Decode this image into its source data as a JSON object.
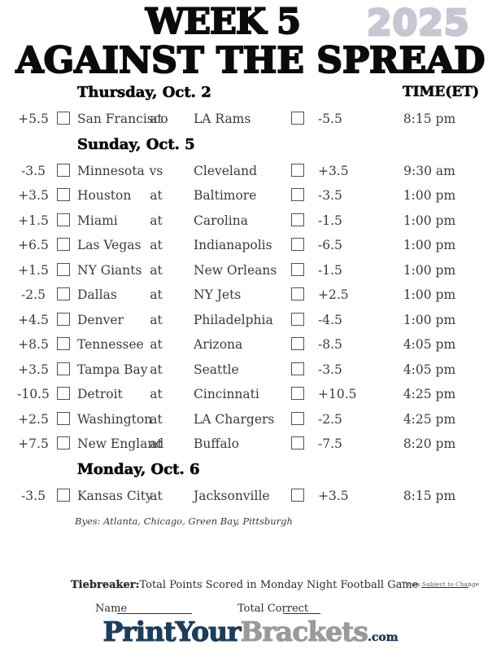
{
  "title": {
    "week": "WEEK 5",
    "year": "2025",
    "line2": "AGAINST THE SPREAD"
  },
  "time_header": "TIME(ET)",
  "sections": [
    {
      "header": "Thursday, Oct. 2",
      "show_time_header": true,
      "games": [
        {
          "away_spread": "+5.5",
          "away": "San Francisco",
          "conj": "at",
          "home": "LA Rams",
          "home_spread": "-5.5",
          "time": "8:15 pm"
        }
      ]
    },
    {
      "header": "Sunday, Oct. 5",
      "show_time_header": false,
      "games": [
        {
          "away_spread": "-3.5",
          "away": "Minnesota",
          "conj": "vs",
          "home": "Cleveland",
          "home_spread": "+3.5",
          "time": "9:30 am"
        },
        {
          "away_spread": "+3.5",
          "away": "Houston",
          "conj": "at",
          "home": "Baltimore",
          "home_spread": "-3.5",
          "time": "1:00 pm"
        },
        {
          "away_spread": "+1.5",
          "away": "Miami",
          "conj": "at",
          "home": "Carolina",
          "home_spread": "-1.5",
          "time": "1:00 pm"
        },
        {
          "away_spread": "+6.5",
          "away": "Las Vegas",
          "conj": "at",
          "home": "Indianapolis",
          "home_spread": "-6.5",
          "time": "1:00 pm"
        },
        {
          "away_spread": "+1.5",
          "away": "NY Giants",
          "conj": "at",
          "home": "New Orleans",
          "home_spread": "-1.5",
          "time": "1:00 pm"
        },
        {
          "away_spread": "-2.5",
          "away": "Dallas",
          "conj": "at",
          "home": "NY Jets",
          "home_spread": "+2.5",
          "time": "1:00 pm"
        },
        {
          "away_spread": "+4.5",
          "away": "Denver",
          "conj": "at",
          "home": "Philadelphia",
          "home_spread": "-4.5",
          "time": "1:00 pm"
        },
        {
          "away_spread": "+8.5",
          "away": "Tennessee",
          "conj": "at",
          "home": "Arizona",
          "home_spread": "-8.5",
          "time": "4:05 pm"
        },
        {
          "away_spread": "+3.5",
          "away": "Tampa Bay",
          "conj": "at",
          "home": "Seattle",
          "home_spread": "-3.5",
          "time": "4:05 pm"
        },
        {
          "away_spread": "-10.5",
          "away": "Detroit",
          "conj": "at",
          "home": "Cincinnati",
          "home_spread": "+10.5",
          "time": "4:25 pm"
        },
        {
          "away_spread": "+2.5",
          "away": "Washington",
          "conj": "at",
          "home": "LA Chargers",
          "home_spread": "-2.5",
          "time": "4:25 pm"
        },
        {
          "away_spread": "+7.5",
          "away": "New England",
          "conj": "at",
          "home": "Buffalo",
          "home_spread": "-7.5",
          "time": "8:20 pm"
        }
      ]
    },
    {
      "header": "Monday, Oct. 6",
      "show_time_header": false,
      "games": [
        {
          "away_spread": "-3.5",
          "away": "Kansas City",
          "conj": "at",
          "home": "Jacksonville",
          "home_spread": "+3.5",
          "time": "8:15 pm"
        }
      ]
    }
  ],
  "byes": "Byes: Atlanta, Chicago, Green Bay, Pittsburgh",
  "footer": {
    "tiebreaker_label": "Tiebreaker:",
    "tiebreaker_text": "Total Points Scored in Monday Night Football Game",
    "times_note": "*Times Subject to Change",
    "name_label": "Name",
    "total_correct_label": "Total Correct"
  },
  "logo": {
    "part1": "PrintYour",
    "part2": "Brackets",
    "part3": ".com"
  },
  "colors": {
    "year_gray": "#c9c5d2",
    "logo_navy": "#1d3d5c",
    "logo_gray": "#9a9a9a",
    "text_dark": "#3c3a3a",
    "header_black": "#0a0a0a"
  }
}
